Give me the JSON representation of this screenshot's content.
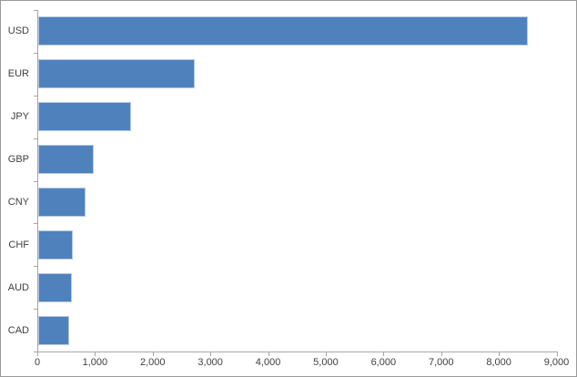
{
  "chart_meta": {
    "background_color": "#ffffff",
    "border_color": "#9a9a9a",
    "bar_color": "#4f81bd",
    "bar_border_color": "#b3c9e3",
    "axis_color": "#a6a6a6",
    "text_color": "#3f3f3f"
  },
  "chart_data": {
    "type": "bar",
    "orientation": "horizontal",
    "title": "",
    "xlabel": "",
    "ylabel": "",
    "categories": [
      "USD",
      "EUR",
      "JPY",
      "GBP",
      "CNY",
      "CHF",
      "AUD",
      "CAD"
    ],
    "values": [
      8480,
      2720,
      1610,
      970,
      815,
      600,
      585,
      540
    ],
    "xlim": [
      0,
      9000
    ],
    "x_ticks": [
      0,
      1000,
      2000,
      3000,
      4000,
      5000,
      6000,
      7000,
      8000,
      9000
    ],
    "x_tick_labels": [
      "0",
      "1,000",
      "2,000",
      "3,000",
      "4,000",
      "5,000",
      "6,000",
      "7,000",
      "8,000",
      "9,000"
    ],
    "grid": false,
    "legend": false
  }
}
